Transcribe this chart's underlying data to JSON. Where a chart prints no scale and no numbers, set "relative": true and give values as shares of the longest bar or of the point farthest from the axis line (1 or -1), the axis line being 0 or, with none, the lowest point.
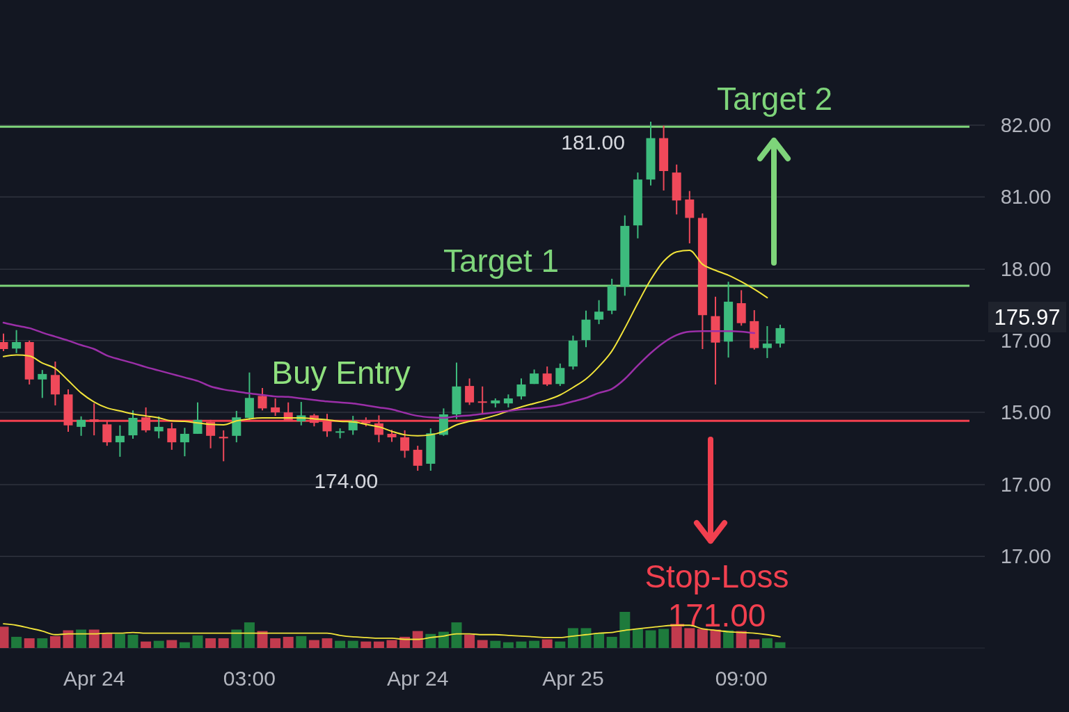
{
  "chart_data": [
    {
      "type": "candlestick",
      "tick_labels": "x",
      "grid": "y",
      "yticks": [
        {
          "value": 180.93,
          "label": null
        },
        {
          "value": 179.49,
          "label": null
        },
        {
          "value": 178.04,
          "label": null
        },
        {
          "value": 176.61,
          "label": null
        },
        {
          "value": 175.17,
          "label": null
        },
        {
          "value": 173.72,
          "label": null
        },
        {
          "value": 172.28,
          "label": null
        }
      ],
      "categories": [
        null,
        null,
        null,
        null,
        null,
        null,
        null,
        "Apr 24",
        null,
        null,
        null,
        null,
        null,
        null,
        null,
        null,
        null,
        null,
        null,
        "03:00",
        null,
        null,
        null,
        null,
        null,
        null,
        null,
        null,
        null,
        null,
        null,
        null,
        "Apr 24",
        null,
        null,
        null,
        null,
        null,
        null,
        null,
        null,
        null,
        null,
        null,
        "Apr 25",
        null,
        null,
        null,
        null,
        null,
        null,
        null,
        null,
        null,
        null,
        null,
        null,
        "09:00",
        null,
        null,
        null
      ],
      "ohlc": [
        [
          176.58,
          176.75,
          176.4,
          176.44
        ],
        [
          176.45,
          176.82,
          176.36,
          176.58
        ],
        [
          176.58,
          176.61,
          175.73,
          175.83
        ],
        [
          175.83,
          176.02,
          175.46,
          175.94
        ],
        [
          175.92,
          176.19,
          175.31,
          175.53
        ],
        [
          175.53,
          175.63,
          174.78,
          174.91
        ],
        [
          174.88,
          175.09,
          174.7,
          175.02
        ],
        [
          175.03,
          175.35,
          174.71,
          174.98
        ],
        [
          174.93,
          175.0,
          174.5,
          174.57
        ],
        [
          174.57,
          174.91,
          174.28,
          174.7
        ],
        [
          174.71,
          175.21,
          174.64,
          175.06
        ],
        [
          175.07,
          175.27,
          174.77,
          174.81
        ],
        [
          174.79,
          175.09,
          174.65,
          174.88
        ],
        [
          174.85,
          174.96,
          174.42,
          174.57
        ],
        [
          174.57,
          174.86,
          174.29,
          174.74
        ],
        [
          174.74,
          175.37,
          174.74,
          175.02
        ],
        [
          174.98,
          175.02,
          174.45,
          174.7
        ],
        [
          174.68,
          174.81,
          174.19,
          174.65
        ],
        [
          174.7,
          175.2,
          174.57,
          175.07
        ],
        [
          175.06,
          175.97,
          175.02,
          175.46
        ],
        [
          175.5,
          175.66,
          175.21,
          175.25
        ],
        [
          175.27,
          175.45,
          175.1,
          175.17
        ],
        [
          175.17,
          175.37,
          174.99,
          174.99
        ],
        [
          174.99,
          175.38,
          174.91,
          175.11
        ],
        [
          175.11,
          175.14,
          174.89,
          174.96
        ],
        [
          174.99,
          175.14,
          174.68,
          174.79
        ],
        [
          174.77,
          174.85,
          174.65,
          174.79
        ],
        [
          174.81,
          175.1,
          174.72,
          175.0
        ],
        [
          175.0,
          175.07,
          174.89,
          174.95
        ],
        [
          174.95,
          175.11,
          174.57,
          174.72
        ],
        [
          174.74,
          174.82,
          174.58,
          174.67
        ],
        [
          174.67,
          174.81,
          174.26,
          174.4
        ],
        [
          174.42,
          174.5,
          174.0,
          174.1
        ],
        [
          174.14,
          174.85,
          174.0,
          174.75
        ],
        [
          174.72,
          175.25,
          174.7,
          175.13
        ],
        [
          175.13,
          176.17,
          175.04,
          175.69
        ],
        [
          175.7,
          175.85,
          175.32,
          175.37
        ],
        [
          175.39,
          175.69,
          175.13,
          175.38
        ],
        [
          175.35,
          175.45,
          175.27,
          175.41
        ],
        [
          175.35,
          175.53,
          175.27,
          175.45
        ],
        [
          175.49,
          175.85,
          175.43,
          175.73
        ],
        [
          175.74,
          176.03,
          175.74,
          175.95
        ],
        [
          175.95,
          176.09,
          175.7,
          175.73
        ],
        [
          175.74,
          176.15,
          175.7,
          176.06
        ],
        [
          176.09,
          176.71,
          176.03,
          176.61
        ],
        [
          176.62,
          177.21,
          176.48,
          177.03
        ],
        [
          177.03,
          177.42,
          176.94,
          177.19
        ],
        [
          177.21,
          177.85,
          177.14,
          177.71
        ],
        [
          177.69,
          179.12,
          177.51,
          178.91
        ],
        [
          178.92,
          179.98,
          178.66,
          179.84
        ],
        [
          179.84,
          181.0,
          179.72,
          180.67
        ],
        [
          180.67,
          180.92,
          179.62,
          180.01
        ],
        [
          179.98,
          180.14,
          179.14,
          179.42
        ],
        [
          179.44,
          179.61,
          178.56,
          179.07
        ],
        [
          179.07,
          179.16,
          176.44,
          177.12
        ],
        [
          177.1,
          177.49,
          175.73,
          176.57
        ],
        [
          176.59,
          177.79,
          176.27,
          177.39
        ],
        [
          177.36,
          177.62,
          176.91,
          176.96
        ],
        [
          177.0,
          177.22,
          176.43,
          176.46
        ],
        [
          176.46,
          176.9,
          176.26,
          176.55
        ],
        [
          176.55,
          176.93,
          176.47,
          176.86
        ]
      ],
      "series": [
        {
          "type": "line",
          "color": "#f2e43a",
          "values": [
            176.29,
            176.32,
            176.3,
            176.16,
            176.05,
            175.81,
            175.56,
            175.38,
            175.26,
            175.2,
            175.14,
            175.1,
            175.06,
            175.0,
            174.99,
            174.96,
            174.93,
            174.92,
            175.0,
            175.04,
            175.06,
            175.06,
            175.06,
            175.06,
            175.04,
            175.02,
            174.99,
            174.98,
            174.93,
            174.88,
            174.79,
            174.72,
            174.7,
            174.72,
            174.79,
            174.92,
            174.99,
            175.04,
            175.11,
            175.2,
            175.28,
            175.35,
            175.42,
            175.52,
            175.67,
            175.84,
            176.09,
            176.4,
            176.86,
            177.36,
            177.83,
            178.2,
            178.39,
            178.42,
            178.14,
            178.02,
            177.92,
            177.79,
            177.64,
            177.47,
            null
          ]
        },
        {
          "type": "line",
          "color": "#9b2fa8",
          "values": [
            176.97,
            176.91,
            176.86,
            176.77,
            176.69,
            176.61,
            176.52,
            176.44,
            176.31,
            176.23,
            176.16,
            176.08,
            176.01,
            175.94,
            175.87,
            175.8,
            175.69,
            175.63,
            175.59,
            175.55,
            175.52,
            175.49,
            175.48,
            175.45,
            175.42,
            175.39,
            175.37,
            175.35,
            175.31,
            175.27,
            175.23,
            175.16,
            175.1,
            175.07,
            175.06,
            175.09,
            175.11,
            175.14,
            175.17,
            175.2,
            175.23,
            175.25,
            175.28,
            175.32,
            175.39,
            175.46,
            175.56,
            175.64,
            175.84,
            176.11,
            176.36,
            176.57,
            176.72,
            176.79,
            176.8,
            176.8,
            176.8,
            176.79,
            176.76,
            null,
            null
          ]
        }
      ],
      "ref_lines": [
        {
          "axis": "y",
          "value": 177.71,
          "label": "Target 1",
          "color": "#7ed47a"
        },
        {
          "axis": "y",
          "value": 180.9,
          "label": "Target 2",
          "color": "#7ed47a"
        },
        {
          "axis": "y",
          "value": 175.0,
          "label": "Stop-Loss 171.00",
          "color": "#f2404f"
        }
      ],
      "annotations": [
        "Buy Entry",
        "181.00",
        "174.00",
        "175.97",
        "82.00",
        "81.00",
        "18.00",
        "17.00",
        "15.00",
        "17.00",
        "17.00"
      ]
    },
    {
      "type": "bar",
      "relative": true,
      "categories": [
        null,
        null,
        null,
        null,
        null,
        null,
        null,
        null,
        null,
        null,
        null,
        null,
        null,
        null,
        null,
        null,
        null,
        null,
        null,
        null,
        null,
        null,
        null,
        null,
        null,
        null,
        null,
        null,
        null,
        null,
        null,
        null,
        null,
        null,
        null,
        null,
        null,
        null,
        null,
        null,
        null,
        null,
        null,
        null,
        null,
        null,
        null,
        null,
        null,
        null,
        null,
        null,
        null,
        null,
        null,
        null,
        null,
        null,
        null,
        null,
        null
      ],
      "series": [
        {
          "type": "bar",
          "values": [
            0.59,
            0.31,
            0.27,
            0.27,
            0.33,
            0.49,
            0.51,
            0.51,
            0.41,
            0.39,
            0.37,
            0.18,
            0.2,
            0.22,
            0.16,
            0.35,
            0.27,
            0.27,
            0.51,
            0.71,
            0.47,
            0.27,
            0.31,
            0.33,
            0.22,
            0.27,
            0.2,
            0.2,
            0.18,
            0.18,
            0.22,
            0.31,
            0.47,
            0.39,
            0.45,
            0.71,
            0.37,
            0.22,
            0.2,
            0.16,
            0.18,
            0.2,
            0.24,
            0.18,
            0.55,
            0.55,
            0.41,
            0.31,
            1,
            0.53,
            0.49,
            0.53,
            0.59,
            0.55,
            0.53,
            0.51,
            0.49,
            0.47,
            0.24,
            0.27,
            0.16
          ],
          "colors": [
            "#c23b4e",
            "#1e7a3c",
            "#c23b4e",
            "#1e7a3c",
            "#c23b4e",
            "#c23b4e",
            "#1e7a3c",
            "#c23b4e",
            "#c23b4e",
            "#1e7a3c",
            "#1e7a3c",
            "#c23b4e",
            "#1e7a3c",
            "#c23b4e",
            "#1e7a3c",
            "#1e7a3c",
            "#c23b4e",
            "#c23b4e",
            "#1e7a3c",
            "#1e7a3c",
            "#c23b4e",
            "#c23b4e",
            "#c23b4e",
            "#1e7a3c",
            "#c23b4e",
            "#c23b4e",
            "#1e7a3c",
            "#1e7a3c",
            "#c23b4e",
            "#c23b4e",
            "#c23b4e",
            "#c23b4e",
            "#c23b4e",
            "#1e7a3c",
            "#1e7a3c",
            "#1e7a3c",
            "#c23b4e",
            "#c23b4e",
            "#1e7a3c",
            "#1e7a3c",
            "#1e7a3c",
            "#1e7a3c",
            "#c23b4e",
            "#1e7a3c",
            "#1e7a3c",
            "#1e7a3c",
            "#1e7a3c",
            "#1e7a3c",
            "#1e7a3c",
            "#1e7a3c",
            "#1e7a3c",
            "#1e7a3c",
            "#c23b4e",
            "#c23b4e",
            "#c23b4e",
            "#c23b4e",
            "#1e7a3c",
            "#c23b4e",
            "#c23b4e",
            "#1e7a3c",
            "#1e7a3c"
          ]
        },
        {
          "type": "line",
          "color": "#f2e43a",
          "values": [
            0.67,
            0.63,
            0.55,
            0.47,
            0.37,
            0.39,
            0.39,
            0.39,
            0.41,
            0.41,
            0.43,
            0.41,
            0.41,
            0.41,
            0.41,
            0.41,
            0.41,
            0.41,
            0.41,
            0.41,
            0.41,
            0.41,
            0.41,
            0.41,
            0.41,
            0.41,
            0.35,
            0.31,
            0.29,
            0.27,
            0.27,
            0.24,
            0.24,
            0.29,
            0.33,
            0.39,
            0.39,
            0.37,
            0.37,
            0.35,
            0.33,
            0.31,
            0.29,
            0.29,
            0.33,
            0.37,
            0.41,
            0.43,
            0.49,
            0.53,
            0.57,
            0.61,
            0.63,
            0.63,
            0.53,
            0.49,
            0.45,
            0.43,
            0.41,
            0.37,
            0.31
          ]
        }
      ]
    }
  ]
}
